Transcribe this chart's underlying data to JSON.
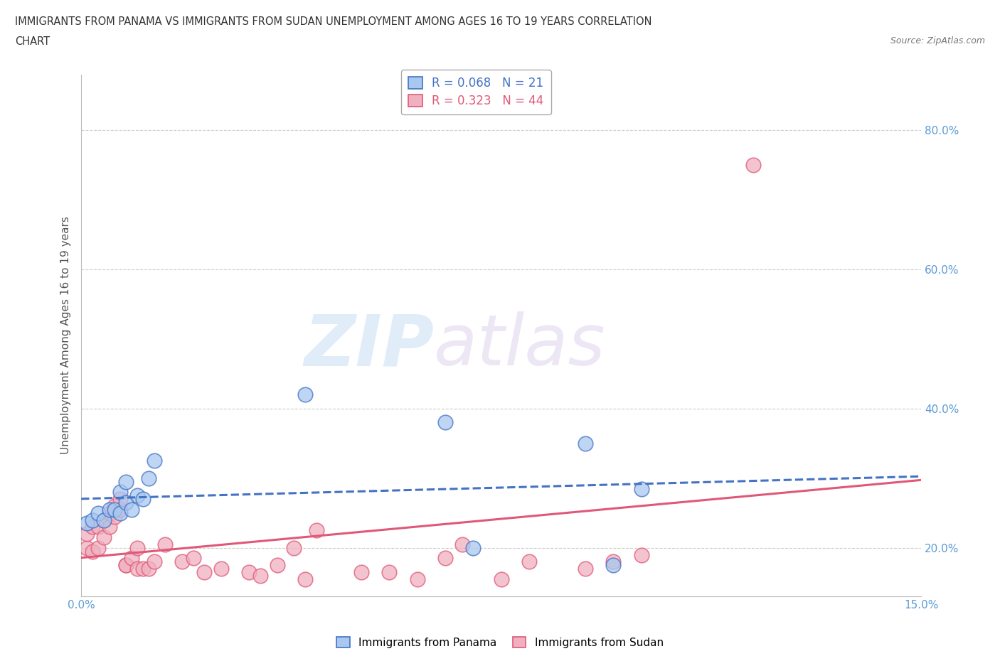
{
  "title_line1": "IMMIGRANTS FROM PANAMA VS IMMIGRANTS FROM SUDAN UNEMPLOYMENT AMONG AGES 16 TO 19 YEARS CORRELATION",
  "title_line2": "CHART",
  "source": "Source: ZipAtlas.com",
  "xlim": [
    0.0,
    0.15
  ],
  "ylim": [
    0.13,
    0.88
  ],
  "ylabel": "Unemployment Among Ages 16 to 19 years",
  "legend_r_panama": "R = 0.068",
  "legend_n_panama": "N = 21",
  "legend_r_sudan": "R = 0.323",
  "legend_n_sudan": "N = 44",
  "color_panama": "#a8c8f0",
  "color_sudan": "#f0b0c0",
  "color_panama_line": "#4472c4",
  "color_sudan_line": "#e05878",
  "watermark_zip": "ZIP",
  "watermark_atlas": "atlas",
  "y_tick_vals": [
    0.2,
    0.4,
    0.6,
    0.8
  ],
  "y_tick_labels": [
    "20.0%",
    "40.0%",
    "60.0%",
    "80.0%"
  ],
  "panama_scatter_x": [
    0.001,
    0.002,
    0.003,
    0.004,
    0.005,
    0.006,
    0.007,
    0.007,
    0.008,
    0.008,
    0.009,
    0.01,
    0.011,
    0.012,
    0.013,
    0.04,
    0.065,
    0.07,
    0.09,
    0.095,
    0.1
  ],
  "panama_scatter_y": [
    0.235,
    0.24,
    0.25,
    0.24,
    0.255,
    0.255,
    0.28,
    0.25,
    0.265,
    0.295,
    0.255,
    0.275,
    0.27,
    0.3,
    0.325,
    0.42,
    0.38,
    0.2,
    0.35,
    0.175,
    0.285
  ],
  "sudan_scatter_x": [
    0.001,
    0.001,
    0.002,
    0.002,
    0.003,
    0.003,
    0.004,
    0.004,
    0.005,
    0.005,
    0.006,
    0.006,
    0.007,
    0.007,
    0.008,
    0.008,
    0.009,
    0.01,
    0.01,
    0.011,
    0.012,
    0.013,
    0.015,
    0.018,
    0.02,
    0.022,
    0.025,
    0.03,
    0.032,
    0.035,
    0.038,
    0.04,
    0.042,
    0.05,
    0.055,
    0.06,
    0.065,
    0.068,
    0.075,
    0.08,
    0.09,
    0.095,
    0.1,
    0.12
  ],
  "sudan_scatter_y": [
    0.2,
    0.22,
    0.195,
    0.23,
    0.2,
    0.23,
    0.215,
    0.24,
    0.23,
    0.25,
    0.245,
    0.26,
    0.255,
    0.27,
    0.175,
    0.175,
    0.185,
    0.2,
    0.17,
    0.17,
    0.17,
    0.18,
    0.205,
    0.18,
    0.185,
    0.165,
    0.17,
    0.165,
    0.16,
    0.175,
    0.2,
    0.155,
    0.225,
    0.165,
    0.165,
    0.155,
    0.185,
    0.205,
    0.155,
    0.18,
    0.17,
    0.18,
    0.19,
    0.75
  ],
  "background_color": "#ffffff",
  "grid_color": "#cccccc"
}
